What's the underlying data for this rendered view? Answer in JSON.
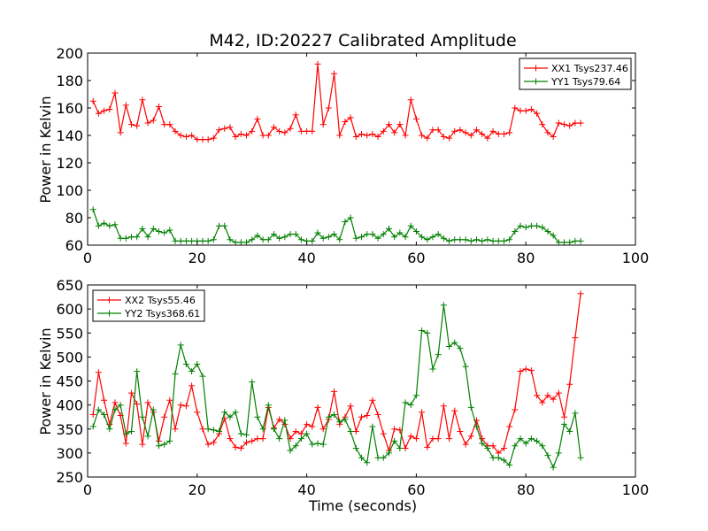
{
  "chart_data": [
    {
      "type": "line",
      "title": "M42, ID:20227 Calibrated Amplitude",
      "xlabel": "",
      "ylabel": "Power in Kelvin",
      "xlim": [
        0,
        100
      ],
      "ylim": [
        60,
        200
      ],
      "xticks": [
        0,
        20,
        40,
        60,
        80,
        100
      ],
      "yticks": [
        60,
        80,
        100,
        120,
        140,
        160,
        180,
        200
      ],
      "grid": false,
      "legend": "top-right",
      "series": [
        {
          "name": "XX1 Tsys237.46",
          "color": "#ff0000",
          "x": [
            1,
            2,
            3,
            4,
            5,
            6,
            7,
            8,
            9,
            10,
            11,
            12,
            13,
            14,
            15,
            16,
            17,
            18,
            19,
            20,
            21,
            22,
            23,
            24,
            25,
            26,
            27,
            28,
            29,
            30,
            31,
            32,
            33,
            34,
            35,
            36,
            37,
            38,
            39,
            40,
            41,
            42,
            43,
            44,
            45,
            46,
            47,
            48,
            49,
            50,
            51,
            52,
            53,
            54,
            55,
            56,
            57,
            58,
            59,
            60,
            61,
            62,
            63,
            64,
            65,
            66,
            67,
            68,
            69,
            70,
            71,
            72,
            73,
            74,
            75,
            76,
            77,
            78,
            79,
            80,
            81,
            82,
            83,
            84,
            85,
            86,
            87,
            88,
            89,
            90
          ],
          "y": [
            165,
            156,
            158,
            159,
            171,
            142,
            162,
            148,
            147,
            166,
            149,
            151,
            161,
            148,
            148,
            143,
            140,
            139,
            140,
            137,
            137,
            137,
            138,
            144,
            145,
            146,
            139,
            141,
            140,
            143,
            152,
            140,
            140,
            146,
            143,
            142,
            145,
            155,
            143,
            143,
            143,
            192,
            148,
            160,
            185,
            140,
            150,
            153,
            139,
            141,
            140,
            141,
            139,
            143,
            148,
            142,
            148,
            140,
            166,
            152,
            140,
            138,
            144,
            144,
            139,
            138,
            143,
            144,
            142,
            140,
            144,
            141,
            138,
            143,
            141,
            141,
            142,
            160,
            158,
            158,
            159,
            156,
            148,
            142,
            139,
            149,
            148,
            147,
            149,
            149
          ]
        },
        {
          "name": "YY1 Tsys79.64",
          "color": "#008000",
          "x": [
            1,
            2,
            3,
            4,
            5,
            6,
            7,
            8,
            9,
            10,
            11,
            12,
            13,
            14,
            15,
            16,
            17,
            18,
            19,
            20,
            21,
            22,
            23,
            24,
            25,
            26,
            27,
            28,
            29,
            30,
            31,
            32,
            33,
            34,
            35,
            36,
            37,
            38,
            39,
            40,
            41,
            42,
            43,
            44,
            45,
            46,
            47,
            48,
            49,
            50,
            51,
            52,
            53,
            54,
            55,
            56,
            57,
            58,
            59,
            60,
            61,
            62,
            63,
            64,
            65,
            66,
            67,
            68,
            69,
            70,
            71,
            72,
            73,
            74,
            75,
            76,
            77,
            78,
            79,
            80,
            81,
            82,
            83,
            84,
            85,
            86,
            87,
            88,
            89,
            90
          ],
          "y": [
            86,
            74,
            76,
            74,
            75,
            65,
            65,
            66,
            66,
            72,
            66,
            72,
            70,
            69,
            71,
            63,
            63,
            63,
            63,
            63,
            63,
            63,
            64,
            74,
            74,
            64,
            62,
            62,
            62,
            64,
            67,
            64,
            64,
            68,
            65,
            66,
            68,
            68,
            64,
            63,
            63,
            69,
            65,
            66,
            68,
            64,
            77,
            80,
            65,
            66,
            68,
            68,
            65,
            68,
            72,
            66,
            69,
            66,
            74,
            70,
            66,
            64,
            66,
            68,
            65,
            63,
            64,
            64,
            64,
            63,
            64,
            63,
            64,
            63,
            63,
            63,
            64,
            70,
            74,
            73,
            74,
            74,
            73,
            70,
            67,
            62,
            62,
            62,
            63,
            63
          ]
        }
      ]
    },
    {
      "type": "line",
      "title": "",
      "xlabel": "Time (seconds)",
      "ylabel": "Power in Kelvin",
      "xlim": [
        0,
        100
      ],
      "ylim": [
        250,
        650
      ],
      "xticks": [
        0,
        20,
        40,
        60,
        80,
        100
      ],
      "yticks": [
        250,
        300,
        350,
        400,
        450,
        500,
        550,
        600,
        650
      ],
      "grid": false,
      "legend": "top-left",
      "series": [
        {
          "name": "XX2 Tsys55.46",
          "color": "#ff0000",
          "x": [
            1,
            2,
            3,
            4,
            5,
            6,
            7,
            8,
            9,
            10,
            11,
            12,
            13,
            14,
            15,
            16,
            17,
            18,
            19,
            20,
            21,
            22,
            23,
            24,
            25,
            26,
            27,
            28,
            29,
            30,
            31,
            32,
            33,
            34,
            35,
            36,
            37,
            38,
            39,
            40,
            41,
            42,
            43,
            44,
            45,
            46,
            47,
            48,
            49,
            50,
            51,
            52,
            53,
            54,
            55,
            56,
            57,
            58,
            59,
            60,
            61,
            62,
            63,
            64,
            65,
            66,
            67,
            68,
            69,
            70,
            71,
            72,
            73,
            74,
            75,
            76,
            77,
            78,
            79,
            80,
            81,
            82,
            83,
            84,
            85,
            86,
            87,
            88,
            89,
            90
          ],
          "y": [
            380,
            468,
            410,
            360,
            405,
            378,
            320,
            425,
            402,
            318,
            405,
            385,
            325,
            375,
            410,
            350,
            400,
            398,
            440,
            385,
            350,
            318,
            322,
            340,
            372,
            330,
            312,
            310,
            322,
            325,
            330,
            330,
            395,
            352,
            370,
            360,
            330,
            345,
            340,
            360,
            355,
            395,
            350,
            370,
            428,
            360,
            375,
            398,
            345,
            375,
            378,
            410,
            380,
            340,
            305,
            350,
            348,
            310,
            335,
            330,
            385,
            312,
            330,
            330,
            398,
            330,
            388,
            345,
            318,
            335,
            368,
            330,
            315,
            315,
            300,
            310,
            355,
            390,
            470,
            475,
            472,
            420,
            405,
            420,
            412,
            425,
            375,
            443,
            540,
            632
          ]
        },
        {
          "name": "YY2 Tsys368.61",
          "color": "#008000",
          "x": [
            1,
            2,
            3,
            4,
            5,
            6,
            7,
            8,
            9,
            10,
            11,
            12,
            13,
            14,
            15,
            16,
            17,
            18,
            19,
            20,
            21,
            22,
            23,
            24,
            25,
            26,
            27,
            28,
            29,
            30,
            31,
            32,
            33,
            34,
            35,
            36,
            37,
            38,
            39,
            40,
            41,
            42,
            43,
            44,
            45,
            46,
            47,
            48,
            49,
            50,
            51,
            52,
            53,
            54,
            55,
            56,
            57,
            58,
            59,
            60,
            61,
            62,
            63,
            64,
            65,
            66,
            67,
            68,
            69,
            70,
            71,
            72,
            73,
            74,
            75,
            76,
            77,
            78,
            79,
            80,
            81,
            82,
            83,
            84,
            85,
            86,
            87,
            88,
            89,
            90
          ],
          "y": [
            355,
            390,
            380,
            350,
            390,
            400,
            340,
            345,
            470,
            375,
            335,
            390,
            315,
            318,
            325,
            465,
            525,
            485,
            470,
            485,
            460,
            350,
            348,
            345,
            385,
            375,
            385,
            340,
            338,
            448,
            375,
            350,
            400,
            350,
            330,
            368,
            305,
            315,
            330,
            340,
            318,
            320,
            318,
            375,
            380,
            365,
            370,
            345,
            310,
            290,
            280,
            355,
            290,
            290,
            300,
            325,
            310,
            405,
            400,
            420,
            555,
            550,
            475,
            505,
            608,
            522,
            530,
            518,
            480,
            395,
            355,
            320,
            310,
            290,
            290,
            285,
            275,
            315,
            330,
            320,
            330,
            325,
            315,
            295,
            270,
            300,
            360,
            345,
            383,
            290
          ]
        }
      ]
    }
  ]
}
